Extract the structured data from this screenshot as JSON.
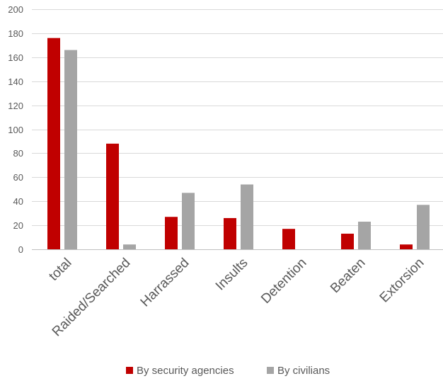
{
  "chart_data": {
    "type": "bar",
    "title": "",
    "xlabel": "",
    "ylabel": "",
    "categories": [
      "total",
      "Raided/Searched",
      "Harrassed",
      "Insults",
      "Detention",
      "Beaten",
      "Extorsion"
    ],
    "series": [
      {
        "name": "By security agencies",
        "color": "#c00000",
        "values": [
          176,
          88,
          27,
          26,
          17,
          13,
          4
        ]
      },
      {
        "name": "By civilians",
        "color": "#a5a5a5",
        "values": [
          166,
          4,
          47,
          54,
          0,
          23,
          37
        ]
      }
    ],
    "ylim": [
      0,
      200
    ],
    "yticks": [
      0,
      20,
      40,
      60,
      80,
      100,
      120,
      140,
      160,
      180,
      200
    ],
    "grid": true,
    "legend": "bottom"
  }
}
